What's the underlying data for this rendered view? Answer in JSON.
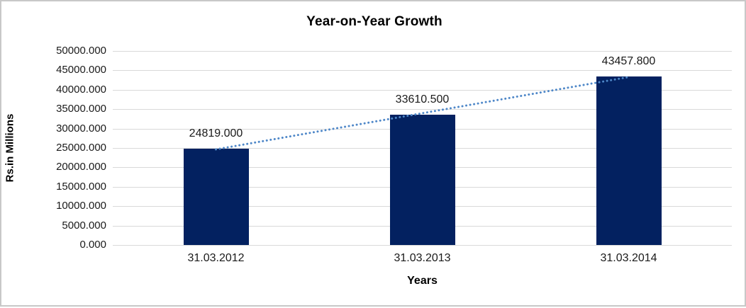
{
  "chart_data": {
    "type": "bar",
    "title": "Year-on-Year Growth",
    "xlabel": "Years",
    "ylabel": "Rs.in Millions",
    "categories": [
      "31.03.2012",
      "31.03.2013",
      "31.03.2014"
    ],
    "values": [
      24819.0,
      33610.5,
      43457.8
    ],
    "data_labels": [
      "24819.000",
      "33610.500",
      "43457.800"
    ],
    "ylim": [
      0,
      50000
    ],
    "ytick_step": 5000,
    "ytick_labels": [
      "0.000",
      "5000.000",
      "10000.000",
      "15000.000",
      "20000.000",
      "25000.000",
      "30000.000",
      "35000.000",
      "40000.000",
      "45000.000",
      "50000.000"
    ],
    "grid": true,
    "legend": false,
    "trendline": {
      "style": "dotted",
      "fit": "linear"
    },
    "colors": {
      "bar": "#032160",
      "trendline": "#4e87c8",
      "gridline": "#d9d9d9",
      "text": "#000000",
      "frame_border": "#c8c8c8",
      "background": "#ffffff"
    }
  }
}
